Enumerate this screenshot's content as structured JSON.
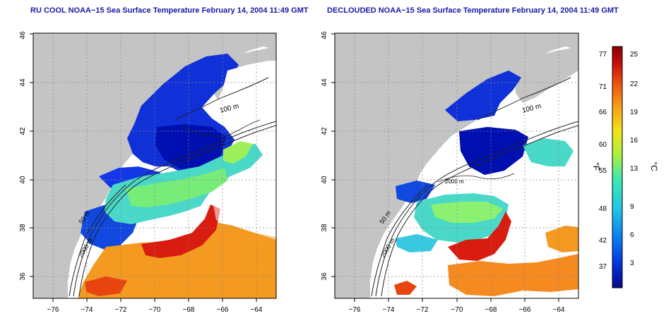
{
  "panels": [
    {
      "title": "RU COOL NOAA−15 Sea Surface Temperature February 14, 2004 11:49 GMT",
      "contour_labels": [
        "100 m",
        "50 m",
        "2000 m"
      ]
    },
    {
      "title": "DECLOUDED NOAA−15 Sea Surface Temperature February 14, 2004 11:49 GMT",
      "contour_labels": [
        "100 m",
        "50 m",
        "2000 m",
        "2000 m"
      ]
    }
  ],
  "axes": {
    "x_ticks": [
      "−76",
      "−74",
      "−72",
      "−70",
      "−68",
      "−66",
      "−64"
    ],
    "y_ticks": [
      "36",
      "38",
      "40",
      "42",
      "44",
      "46"
    ]
  },
  "colorbar": {
    "fahrenheit_label": "°F",
    "celsius_label": "°C",
    "fahrenheit_ticks": [
      "77",
      "71",
      "66",
      "60",
      "55",
      "48",
      "42",
      "37"
    ],
    "celsius_ticks": [
      "25",
      "22",
      "19",
      "16",
      "13",
      "9",
      "6",
      "3"
    ],
    "colors": [
      "#08088a",
      "#0033dd",
      "#0a78f0",
      "#22c8e8",
      "#3ee8b0",
      "#a8f040",
      "#f4e418",
      "#f8a018",
      "#ec5010",
      "#c80c0c",
      "#8a0000"
    ]
  },
  "map_colors": {
    "land": "#c4c4c4",
    "ocean_empty": "#ffffff",
    "contour": "#222222",
    "grid": "#888888"
  }
}
